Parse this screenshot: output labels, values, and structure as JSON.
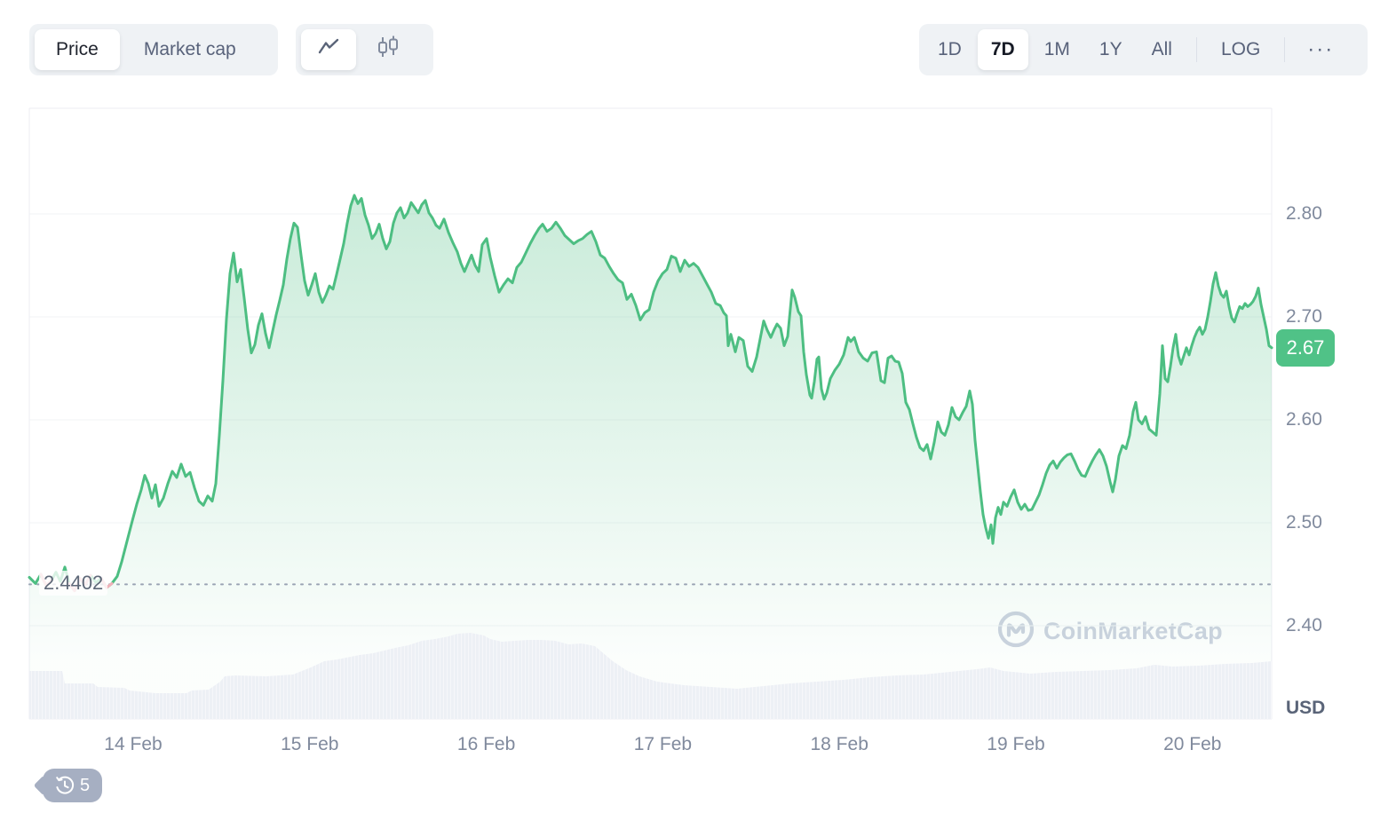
{
  "header": {
    "metric_tabs": [
      {
        "label": "Price",
        "active": true
      },
      {
        "label": "Market cap",
        "active": false
      }
    ],
    "chart_type_tabs": [
      {
        "name": "line-chart",
        "active": true
      },
      {
        "name": "candlestick-chart",
        "active": false
      }
    ],
    "range_tabs": [
      {
        "label": "1D",
        "active": false
      },
      {
        "label": "7D",
        "active": true
      },
      {
        "label": "1M",
        "active": false
      },
      {
        "label": "1Y",
        "active": false
      },
      {
        "label": "All",
        "active": false
      }
    ],
    "log_label": "LOG",
    "more_label": "···"
  },
  "watermark": {
    "brand": "CoinMarketCap"
  },
  "history_badge": {
    "count": "5"
  },
  "colors": {
    "line_green": "#4DBE82",
    "badge_green": "#50C287",
    "area_green": "#4DBE82",
    "below_baseline_pink": "#F2B1BA",
    "grid": "#F1F3F6",
    "border": "#ECEEF3",
    "volume_gray": "#EDF0F5",
    "baseline_gray": "#9AA3B4"
  },
  "chart_data": {
    "type": "area",
    "title": "7-day price chart",
    "unit": "USD",
    "last_price": 2.67,
    "last_price_label": "2.67",
    "baseline_value": 2.4402,
    "baseline_label": "2.4402",
    "y_ticks": [
      {
        "label": "2.80",
        "value": 2.8
      },
      {
        "label": "2.70",
        "value": 2.7
      },
      {
        "label": "2.60",
        "value": 2.6
      },
      {
        "label": "2.50",
        "value": 2.5
      },
      {
        "label": "2.40",
        "value": 2.4
      }
    ],
    "x_labels": [
      "14 Feb",
      "15 Feb",
      "16 Feb",
      "17 Feb",
      "18 Feb",
      "19 Feb",
      "20 Feb"
    ],
    "ylim": [
      2.31,
      2.9
    ],
    "grid": true,
    "legend": "none",
    "points": [
      [
        33,
        2.447
      ],
      [
        40,
        2.441
      ],
      [
        46,
        2.45
      ],
      [
        52,
        2.439
      ],
      [
        58,
        2.444
      ],
      [
        63,
        2.452
      ],
      [
        68,
        2.443
      ],
      [
        73,
        2.457
      ],
      [
        78,
        2.441
      ],
      [
        84,
        2.434
      ],
      [
        90,
        2.446
      ],
      [
        96,
        2.44
      ],
      [
        102,
        2.449
      ],
      [
        108,
        2.442
      ],
      [
        114,
        2.446
      ],
      [
        120,
        2.437
      ],
      [
        126,
        2.441
      ],
      [
        132,
        2.448
      ],
      [
        137,
        2.462
      ],
      [
        143,
        2.482
      ],
      [
        149,
        2.502
      ],
      [
        154,
        2.518
      ],
      [
        159,
        2.532
      ],
      [
        163,
        2.546
      ],
      [
        167,
        2.538
      ],
      [
        171,
        2.524
      ],
      [
        175,
        2.537
      ],
      [
        179,
        2.516
      ],
      [
        184,
        2.524
      ],
      [
        189,
        2.538
      ],
      [
        194,
        2.55
      ],
      [
        199,
        2.544
      ],
      [
        204,
        2.557
      ],
      [
        209,
        2.545
      ],
      [
        214,
        2.549
      ],
      [
        219,
        2.534
      ],
      [
        224,
        2.521
      ],
      [
        229,
        2.517
      ],
      [
        234,
        2.526
      ],
      [
        239,
        2.521
      ],
      [
        243,
        2.538
      ],
      [
        247,
        2.585
      ],
      [
        251,
        2.638
      ],
      [
        255,
        2.698
      ],
      [
        259,
        2.742
      ],
      [
        263,
        2.762
      ],
      [
        267,
        2.734
      ],
      [
        271,
        2.746
      ],
      [
        275,
        2.718
      ],
      [
        279,
        2.688
      ],
      [
        283,
        2.665
      ],
      [
        287,
        2.673
      ],
      [
        291,
        2.692
      ],
      [
        295,
        2.703
      ],
      [
        299,
        2.684
      ],
      [
        303,
        2.67
      ],
      [
        307,
        2.686
      ],
      [
        311,
        2.702
      ],
      [
        315,
        2.716
      ],
      [
        319,
        2.731
      ],
      [
        323,
        2.756
      ],
      [
        327,
        2.776
      ],
      [
        331,
        2.791
      ],
      [
        335,
        2.787
      ],
      [
        339,
        2.76
      ],
      [
        343,
        2.735
      ],
      [
        347,
        2.721
      ],
      [
        351,
        2.731
      ],
      [
        355,
        2.742
      ],
      [
        359,
        2.724
      ],
      [
        363,
        2.714
      ],
      [
        367,
        2.721
      ],
      [
        371,
        2.73
      ],
      [
        375,
        2.727
      ],
      [
        379,
        2.741
      ],
      [
        383,
        2.756
      ],
      [
        387,
        2.771
      ],
      [
        391,
        2.791
      ],
      [
        395,
        2.808
      ],
      [
        399,
        2.818
      ],
      [
        403,
        2.81
      ],
      [
        407,
        2.815
      ],
      [
        411,
        2.799
      ],
      [
        415,
        2.789
      ],
      [
        419,
        2.776
      ],
      [
        423,
        2.781
      ],
      [
        427,
        2.79
      ],
      [
        431,
        2.776
      ],
      [
        435,
        2.766
      ],
      [
        439,
        2.773
      ],
      [
        443,
        2.791
      ],
      [
        447,
        2.801
      ],
      [
        451,
        2.806
      ],
      [
        455,
        2.796
      ],
      [
        459,
        2.801
      ],
      [
        463,
        2.811
      ],
      [
        467,
        2.806
      ],
      [
        471,
        2.801
      ],
      [
        475,
        2.809
      ],
      [
        479,
        2.813
      ],
      [
        483,
        2.801
      ],
      [
        487,
        2.796
      ],
      [
        491,
        2.789
      ],
      [
        495,
        2.786
      ],
      [
        500,
        2.795
      ],
      [
        505,
        2.782
      ],
      [
        510,
        2.772
      ],
      [
        515,
        2.763
      ],
      [
        519,
        2.752
      ],
      [
        523,
        2.744
      ],
      [
        527,
        2.752
      ],
      [
        531,
        2.76
      ],
      [
        535,
        2.75
      ],
      [
        539,
        2.744
      ],
      [
        543,
        2.77
      ],
      [
        548,
        2.776
      ],
      [
        552,
        2.758
      ],
      [
        557,
        2.74
      ],
      [
        562,
        2.724
      ],
      [
        567,
        2.731
      ],
      [
        572,
        2.737
      ],
      [
        577,
        2.733
      ],
      [
        582,
        2.748
      ],
      [
        587,
        2.753
      ],
      [
        592,
        2.762
      ],
      [
        597,
        2.771
      ],
      [
        602,
        2.779
      ],
      [
        607,
        2.786
      ],
      [
        611,
        2.79
      ],
      [
        616,
        2.783
      ],
      [
        621,
        2.786
      ],
      [
        626,
        2.792
      ],
      [
        631,
        2.786
      ],
      [
        636,
        2.779
      ],
      [
        641,
        2.775
      ],
      [
        646,
        2.771
      ],
      [
        651,
        2.774
      ],
      [
        656,
        2.776
      ],
      [
        661,
        2.78
      ],
      [
        666,
        2.783
      ],
      [
        671,
        2.773
      ],
      [
        676,
        2.76
      ],
      [
        681,
        2.757
      ],
      [
        686,
        2.749
      ],
      [
        691,
        2.742
      ],
      [
        696,
        2.736
      ],
      [
        701,
        2.733
      ],
      [
        706,
        2.717
      ],
      [
        711,
        2.722
      ],
      [
        716,
        2.711
      ],
      [
        721,
        2.697
      ],
      [
        726,
        2.704
      ],
      [
        731,
        2.707
      ],
      [
        736,
        2.724
      ],
      [
        741,
        2.735
      ],
      [
        746,
        2.742
      ],
      [
        751,
        2.746
      ],
      [
        756,
        2.759
      ],
      [
        761,
        2.757
      ],
      [
        766,
        2.744
      ],
      [
        771,
        2.755
      ],
      [
        776,
        2.749
      ],
      [
        781,
        2.752
      ],
      [
        786,
        2.748
      ],
      [
        791,
        2.74
      ],
      [
        796,
        2.732
      ],
      [
        801,
        2.724
      ],
      [
        806,
        2.713
      ],
      [
        811,
        2.711
      ],
      [
        815,
        2.704
      ],
      [
        818,
        2.701
      ],
      [
        820,
        2.672
      ],
      [
        823,
        2.683
      ],
      [
        828,
        2.666
      ],
      [
        832,
        2.68
      ],
      [
        837,
        2.677
      ],
      [
        842,
        2.652
      ],
      [
        847,
        2.647
      ],
      [
        852,
        2.661
      ],
      [
        857,
        2.683
      ],
      [
        860,
        2.696
      ],
      [
        864,
        2.687
      ],
      [
        868,
        2.68
      ],
      [
        872,
        2.688
      ],
      [
        875,
        2.693
      ],
      [
        879,
        2.689
      ],
      [
        883,
        2.672
      ],
      [
        887,
        2.681
      ],
      [
        892,
        2.726
      ],
      [
        895,
        2.719
      ],
      [
        899,
        2.705
      ],
      [
        902,
        2.701
      ],
      [
        905,
        2.666
      ],
      [
        908,
        2.644
      ],
      [
        912,
        2.624
      ],
      [
        914,
        2.621
      ],
      [
        917,
        2.637
      ],
      [
        920,
        2.659
      ],
      [
        922,
        2.661
      ],
      [
        925,
        2.63
      ],
      [
        928,
        2.62
      ],
      [
        931,
        2.626
      ],
      [
        935,
        2.64
      ],
      [
        940,
        2.648
      ],
      [
        945,
        2.654
      ],
      [
        950,
        2.663
      ],
      [
        955,
        2.68
      ],
      [
        958,
        2.676
      ],
      [
        962,
        2.68
      ],
      [
        967,
        2.666
      ],
      [
        972,
        2.66
      ],
      [
        977,
        2.657
      ],
      [
        982,
        2.665
      ],
      [
        987,
        2.666
      ],
      [
        992,
        2.638
      ],
      [
        996,
        2.636
      ],
      [
        1000,
        2.66
      ],
      [
        1004,
        2.662
      ],
      [
        1008,
        2.657
      ],
      [
        1012,
        2.656
      ],
      [
        1016,
        2.645
      ],
      [
        1020,
        2.617
      ],
      [
        1024,
        2.61
      ],
      [
        1028,
        2.596
      ],
      [
        1032,
        2.583
      ],
      [
        1036,
        2.573
      ],
      [
        1040,
        2.57
      ],
      [
        1044,
        2.576
      ],
      [
        1048,
        2.562
      ],
      [
        1052,
        2.578
      ],
      [
        1056,
        2.598
      ],
      [
        1060,
        2.588
      ],
      [
        1064,
        2.585
      ],
      [
        1068,
        2.595
      ],
      [
        1072,
        2.612
      ],
      [
        1076,
        2.603
      ],
      [
        1080,
        2.6
      ],
      [
        1084,
        2.607
      ],
      [
        1088,
        2.613
      ],
      [
        1092,
        2.628
      ],
      [
        1095,
        2.615
      ],
      [
        1098,
        2.58
      ],
      [
        1101,
        2.555
      ],
      [
        1104,
        2.53
      ],
      [
        1107,
        2.508
      ],
      [
        1110,
        2.495
      ],
      [
        1113,
        2.485
      ],
      [
        1116,
        2.498
      ],
      [
        1118,
        2.48
      ],
      [
        1121,
        2.505
      ],
      [
        1124,
        2.515
      ],
      [
        1127,
        2.508
      ],
      [
        1130,
        2.52
      ],
      [
        1134,
        2.516
      ],
      [
        1138,
        2.525
      ],
      [
        1142,
        2.532
      ],
      [
        1146,
        2.52
      ],
      [
        1150,
        2.513
      ],
      [
        1154,
        2.518
      ],
      [
        1158,
        2.512
      ],
      [
        1162,
        2.513
      ],
      [
        1166,
        2.52
      ],
      [
        1170,
        2.527
      ],
      [
        1174,
        2.537
      ],
      [
        1178,
        2.548
      ],
      [
        1182,
        2.556
      ],
      [
        1186,
        2.56
      ],
      [
        1190,
        2.553
      ],
      [
        1194,
        2.559
      ],
      [
        1198,
        2.563
      ],
      [
        1202,
        2.566
      ],
      [
        1206,
        2.567
      ],
      [
        1210,
        2.56
      ],
      [
        1214,
        2.552
      ],
      [
        1218,
        2.546
      ],
      [
        1222,
        2.545
      ],
      [
        1226,
        2.553
      ],
      [
        1230,
        2.56
      ],
      [
        1234,
        2.566
      ],
      [
        1238,
        2.571
      ],
      [
        1242,
        2.565
      ],
      [
        1246,
        2.555
      ],
      [
        1250,
        2.54
      ],
      [
        1253,
        2.53
      ],
      [
        1256,
        2.542
      ],
      [
        1260,
        2.565
      ],
      [
        1264,
        2.575
      ],
      [
        1268,
        2.572
      ],
      [
        1272,
        2.585
      ],
      [
        1276,
        2.608
      ],
      [
        1279,
        2.617
      ],
      [
        1282,
        2.6
      ],
      [
        1286,
        2.596
      ],
      [
        1290,
        2.603
      ],
      [
        1294,
        2.591
      ],
      [
        1298,
        2.588
      ],
      [
        1302,
        2.585
      ],
      [
        1306,
        2.625
      ],
      [
        1309,
        2.672
      ],
      [
        1312,
        2.64
      ],
      [
        1315,
        2.637
      ],
      [
        1318,
        2.652
      ],
      [
        1321,
        2.67
      ],
      [
        1324,
        2.683
      ],
      [
        1327,
        2.662
      ],
      [
        1330,
        2.654
      ],
      [
        1333,
        2.662
      ],
      [
        1336,
        2.67
      ],
      [
        1339,
        2.663
      ],
      [
        1342,
        2.672
      ],
      [
        1345,
        2.68
      ],
      [
        1348,
        2.686
      ],
      [
        1351,
        2.69
      ],
      [
        1354,
        2.683
      ],
      [
        1357,
        2.688
      ],
      [
        1360,
        2.7
      ],
      [
        1363,
        2.715
      ],
      [
        1366,
        2.732
      ],
      [
        1369,
        2.743
      ],
      [
        1372,
        2.73
      ],
      [
        1375,
        2.722
      ],
      [
        1378,
        2.719
      ],
      [
        1381,
        2.725
      ],
      [
        1384,
        2.71
      ],
      [
        1387,
        2.699
      ],
      [
        1390,
        2.695
      ],
      [
        1393,
        2.703
      ],
      [
        1396,
        2.71
      ],
      [
        1399,
        2.708
      ],
      [
        1402,
        2.713
      ],
      [
        1405,
        2.71
      ],
      [
        1408,
        2.712
      ],
      [
        1411,
        2.715
      ],
      [
        1414,
        2.72
      ],
      [
        1417,
        2.728
      ],
      [
        1420,
        2.712
      ],
      [
        1423,
        2.7
      ],
      [
        1426,
        2.688
      ],
      [
        1429,
        2.672
      ],
      [
        1432,
        2.67
      ]
    ],
    "volume_profile": [
      [
        33,
        54
      ],
      [
        70,
        54
      ],
      [
        73,
        40
      ],
      [
        105,
        40
      ],
      [
        110,
        36
      ],
      [
        140,
        35
      ],
      [
        146,
        32
      ],
      [
        175,
        29
      ],
      [
        210,
        29
      ],
      [
        216,
        32
      ],
      [
        235,
        33
      ],
      [
        248,
        42
      ],
      [
        253,
        48
      ],
      [
        265,
        49
      ],
      [
        300,
        48
      ],
      [
        330,
        50
      ],
      [
        350,
        58
      ],
      [
        365,
        65
      ],
      [
        380,
        67
      ],
      [
        405,
        72
      ],
      [
        420,
        74
      ],
      [
        445,
        80
      ],
      [
        460,
        83
      ],
      [
        475,
        88
      ],
      [
        490,
        90
      ],
      [
        505,
        93
      ],
      [
        515,
        96
      ],
      [
        530,
        97
      ],
      [
        545,
        94
      ],
      [
        552,
        90
      ],
      [
        565,
        87
      ],
      [
        580,
        88
      ],
      [
        595,
        89
      ],
      [
        610,
        89
      ],
      [
        625,
        88
      ],
      [
        640,
        84
      ],
      [
        655,
        85
      ],
      [
        670,
        82
      ],
      [
        690,
        65
      ],
      [
        705,
        55
      ],
      [
        720,
        48
      ],
      [
        740,
        42
      ],
      [
        770,
        38
      ],
      [
        800,
        36
      ],
      [
        830,
        34
      ],
      [
        860,
        37
      ],
      [
        890,
        40
      ],
      [
        920,
        42
      ],
      [
        950,
        44
      ],
      [
        980,
        47
      ],
      [
        1010,
        49
      ],
      [
        1040,
        50
      ],
      [
        1070,
        53
      ],
      [
        1100,
        56
      ],
      [
        1115,
        58
      ],
      [
        1130,
        54
      ],
      [
        1160,
        51
      ],
      [
        1190,
        53
      ],
      [
        1220,
        54
      ],
      [
        1250,
        55
      ],
      [
        1280,
        57
      ],
      [
        1300,
        61
      ],
      [
        1320,
        59
      ],
      [
        1350,
        60
      ],
      [
        1380,
        62
      ],
      [
        1410,
        63
      ],
      [
        1432,
        65
      ]
    ]
  }
}
